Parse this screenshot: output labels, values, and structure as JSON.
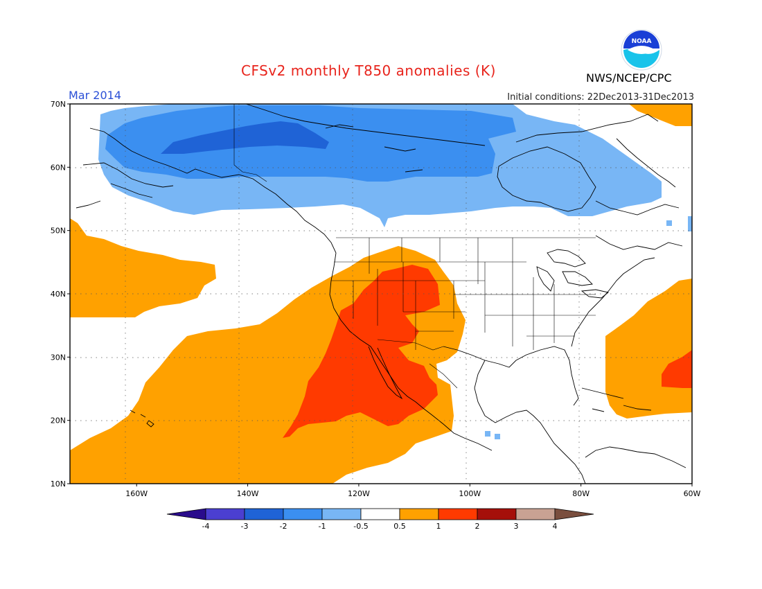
{
  "header": {
    "title": "CFSv2 monthly T850 anomalies (K)",
    "agency": "NWS/NCEP/CPC",
    "month": "Mar 2014",
    "initial_conditions": "Initial conditions: 22Dec2013-31Dec2013"
  },
  "logo": {
    "text": "NOAA",
    "icon": "noaa-logo-icon"
  },
  "map": {
    "lat_labels": [
      "70N",
      "60N",
      "50N",
      "40N",
      "30N",
      "20N",
      "10N"
    ],
    "lon_labels": [
      "160W",
      "140W",
      "120W",
      "100W",
      "80W",
      "60W"
    ],
    "lat_values": [
      70,
      60,
      50,
      40,
      30,
      20,
      10
    ],
    "lon_values": [
      -160,
      -140,
      -120,
      -100,
      -80,
      -60
    ],
    "extent": {
      "lon": [
        -172,
        -60
      ],
      "lat": [
        10,
        70
      ]
    },
    "grid": "dotted",
    "anomaly_regions": [
      {
        "level": "< -2",
        "area": "Alaska / northwestern Canada"
      },
      {
        "level": "-2 to -1",
        "area": "Alaska, Canada, Hudson Bay"
      },
      {
        "level": "-1 to -0.5",
        "area": "northern band 52N-70N"
      },
      {
        "level": "0.5 to 1",
        "area": "eastern Pacific, western US, northwest Atlantic"
      },
      {
        "level": "1 to 2",
        "area": "Baja California, southwestern US, Mexico Pacific coast, western Atlantic near 28N"
      }
    ]
  },
  "colorbar": {
    "labels": [
      "-4",
      "-3",
      "-2",
      "-1",
      "-0.5",
      "0.5",
      "1",
      "2",
      "3",
      "4"
    ],
    "colors": [
      "#2a0c8c",
      "#4b3fd1",
      "#1f63d6",
      "#3b8ff0",
      "#78b6f5",
      "#ffffff",
      "#ffa100",
      "#ff3a00",
      "#a50f0a",
      "#c9a293",
      "#7a4e3e"
    ]
  }
}
